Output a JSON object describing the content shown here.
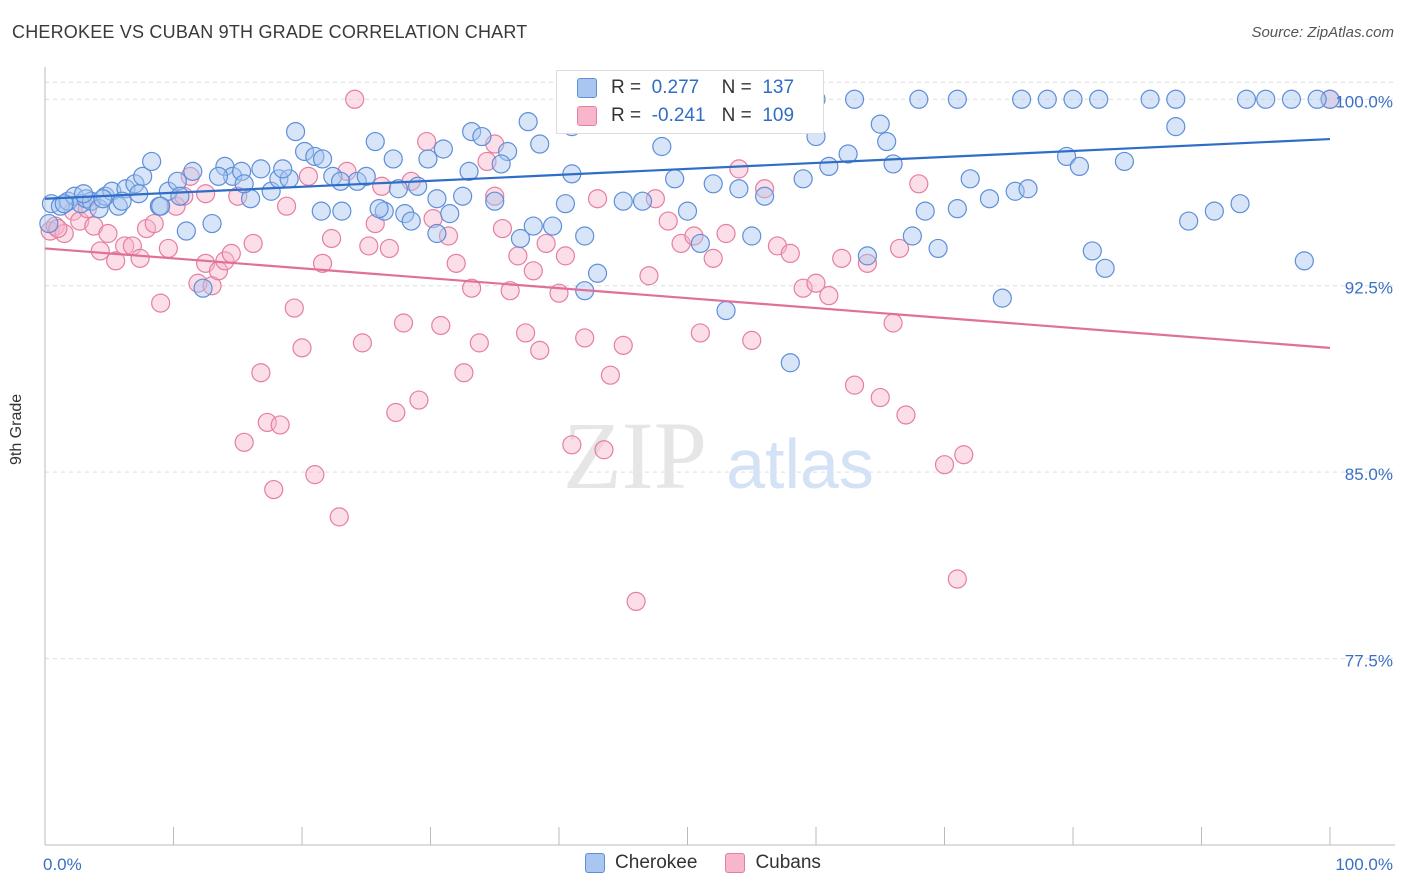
{
  "title": "CHEROKEE VS CUBAN 9TH GRADE CORRELATION CHART",
  "source": "Source: ZipAtlas.com",
  "watermark": {
    "zip": "ZIP",
    "atlas": "atlas"
  },
  "legend": {
    "rows": [
      {
        "r_label": "R =",
        "r_value": "0.277",
        "n_label": "N =",
        "n_value": "137"
      },
      {
        "r_label": "R =",
        "r_value": "-0.241",
        "n_label": "N =",
        "n_value": "109"
      }
    ]
  },
  "bottom_legend": [
    "Cherokee",
    "Cubans"
  ],
  "colors": {
    "cherokee_fill": "#a8c6f0",
    "cherokee_stroke": "#5e8fd8",
    "cherokee_line": "#2f6dc7",
    "cubans_fill": "#f7b6cb",
    "cubans_stroke": "#e57fa1",
    "cubans_line": "#e0709a",
    "tick_label": "#3a6fc4",
    "grid": "#dddddd"
  },
  "chart_data": {
    "type": "scatter",
    "title": "CHEROKEE VS CUBAN 9TH GRADE CORRELATION CHART",
    "xlabel": "",
    "ylabel": "9th Grade",
    "xlim": [
      0,
      100
    ],
    "ylim": [
      70.0,
      101.5
    ],
    "x_tick_labels": [
      {
        "value": 0,
        "label": "0.0%"
      },
      {
        "value": 100,
        "label": "100.0%"
      }
    ],
    "y_tick_labels": [
      {
        "value": 100,
        "label": "100.0%"
      },
      {
        "value": 92.5,
        "label": "92.5%"
      },
      {
        "value": 85,
        "label": "85.0%"
      },
      {
        "value": 77.5,
        "label": "77.5%"
      }
    ],
    "grid": true,
    "legend_position": "top-center",
    "series": [
      {
        "name": "Cherokee",
        "r": 0.277,
        "n": 137,
        "trend": {
          "x": [
            0,
            100
          ],
          "y": [
            96.0,
            98.4
          ]
        },
        "points": [
          [
            0.5,
            95.8
          ],
          [
            1.2,
            95.7
          ],
          [
            1.8,
            95.9
          ],
          [
            2.3,
            96.1
          ],
          [
            2.8,
            95.8
          ],
          [
            3.2,
            96.0
          ],
          [
            3.6,
            95.9
          ],
          [
            4.2,
            95.6
          ],
          [
            4.7,
            96.1
          ],
          [
            5.2,
            96.3
          ],
          [
            5.7,
            95.7
          ],
          [
            6.3,
            96.4
          ],
          [
            7.0,
            96.6
          ],
          [
            7.6,
            96.9
          ],
          [
            8.3,
            97.5
          ],
          [
            8.9,
            95.7
          ],
          [
            9.6,
            96.3
          ],
          [
            10.3,
            96.7
          ],
          [
            11.0,
            94.7
          ],
          [
            11.5,
            97.1
          ],
          [
            12.3,
            92.4
          ],
          [
            13.0,
            95.0
          ],
          [
            14.0,
            97.3
          ],
          [
            14.6,
            96.9
          ],
          [
            15.3,
            97.1
          ],
          [
            16.0,
            96.0
          ],
          [
            16.8,
            97.2
          ],
          [
            17.6,
            96.3
          ],
          [
            18.2,
            96.8
          ],
          [
            19.0,
            96.8
          ],
          [
            19.5,
            98.7
          ],
          [
            20.2,
            97.9
          ],
          [
            21.0,
            97.7
          ],
          [
            21.6,
            97.6
          ],
          [
            22.4,
            96.9
          ],
          [
            23.1,
            95.5
          ],
          [
            24.3,
            96.7
          ],
          [
            25.0,
            96.9
          ],
          [
            25.7,
            98.3
          ],
          [
            26.4,
            95.5
          ],
          [
            27.1,
            97.6
          ],
          [
            28.0,
            95.4
          ],
          [
            28.5,
            95.1
          ],
          [
            29.0,
            96.5
          ],
          [
            29.8,
            97.6
          ],
          [
            30.5,
            94.6
          ],
          [
            31.0,
            98.0
          ],
          [
            31.5,
            95.4
          ],
          [
            32.5,
            96.1
          ],
          [
            33.2,
            98.7
          ],
          [
            34.0,
            98.5
          ],
          [
            35.0,
            95.9
          ],
          [
            36.0,
            97.9
          ],
          [
            37.0,
            94.4
          ],
          [
            37.6,
            99.1
          ],
          [
            38.0,
            94.9
          ],
          [
            39.5,
            94.9
          ],
          [
            40.5,
            95.8
          ],
          [
            41.0,
            97.0
          ],
          [
            42.0,
            94.5
          ],
          [
            43.0,
            93.0
          ],
          [
            43.5,
            100.0
          ],
          [
            45.0,
            95.9
          ],
          [
            46.5,
            95.9
          ],
          [
            48.0,
            98.1
          ],
          [
            49.0,
            96.8
          ],
          [
            50.0,
            95.5
          ],
          [
            51.0,
            94.2
          ],
          [
            52.0,
            96.6
          ],
          [
            53.0,
            91.5
          ],
          [
            54.0,
            96.4
          ],
          [
            55.0,
            94.5
          ],
          [
            56.0,
            96.1
          ],
          [
            57.0,
            100.0
          ],
          [
            58.0,
            89.4
          ],
          [
            59.0,
            96.8
          ],
          [
            60.0,
            98.5
          ],
          [
            61.0,
            97.3
          ],
          [
            62.5,
            97.8
          ],
          [
            64.0,
            93.7
          ],
          [
            65.5,
            98.3
          ],
          [
            66.0,
            97.4
          ],
          [
            67.5,
            94.5
          ],
          [
            68.5,
            95.5
          ],
          [
            69.5,
            94.0
          ],
          [
            71.0,
            95.6
          ],
          [
            72.0,
            96.8
          ],
          [
            73.5,
            96.0
          ],
          [
            74.5,
            92.0
          ],
          [
            75.5,
            96.3
          ],
          [
            76.5,
            96.4
          ],
          [
            78.0,
            100.0
          ],
          [
            79.5,
            97.7
          ],
          [
            80.5,
            97.3
          ],
          [
            81.5,
            93.9
          ],
          [
            82.5,
            93.2
          ],
          [
            84.0,
            97.5
          ],
          [
            86.0,
            100.0
          ],
          [
            88.0,
            98.9
          ],
          [
            89.0,
            95.1
          ],
          [
            91.0,
            95.5
          ],
          [
            93.0,
            95.8
          ],
          [
            95.0,
            100.0
          ],
          [
            97.0,
            100.0
          ],
          [
            98.0,
            93.5
          ],
          [
            100.0,
            100.0
          ],
          [
            99.0,
            100.0
          ],
          [
            93.5,
            100.0
          ],
          [
            88.0,
            100.0
          ],
          [
            82.0,
            100.0
          ],
          [
            80.0,
            100.0
          ],
          [
            76.0,
            100.0
          ],
          [
            71.0,
            100.0
          ],
          [
            68.0,
            100.0
          ],
          [
            63.0,
            100.0
          ],
          [
            60.0,
            100.0
          ],
          [
            55.0,
            100.0
          ],
          [
            52.0,
            100.0
          ],
          [
            49.0,
            100.0
          ],
          [
            47.0,
            100.0
          ],
          [
            45.5,
            100.0
          ],
          [
            41.0,
            98.9
          ],
          [
            38.5,
            98.2
          ],
          [
            35.5,
            97.4
          ],
          [
            33.0,
            97.1
          ],
          [
            30.5,
            96.0
          ],
          [
            27.5,
            96.4
          ],
          [
            26.0,
            95.6
          ],
          [
            23.0,
            96.7
          ],
          [
            21.5,
            95.5
          ],
          [
            18.5,
            97.2
          ],
          [
            15.5,
            96.6
          ],
          [
            13.5,
            96.9
          ],
          [
            10.5,
            96.1
          ],
          [
            9.0,
            95.7
          ],
          [
            7.3,
            96.2
          ],
          [
            6.0,
            95.9
          ],
          [
            4.5,
            96.0
          ],
          [
            3.0,
            96.2
          ],
          [
            1.5,
            95.8
          ],
          [
            0.3,
            95.0
          ],
          [
            42.0,
            92.3
          ],
          [
            65.0,
            99.0
          ]
        ]
      },
      {
        "name": "Cubans",
        "r": -0.241,
        "n": 109,
        "trend": {
          "x": [
            0,
            100
          ],
          "y": [
            94.0,
            90.0
          ]
        },
        "points": [
          [
            0.4,
            94.7
          ],
          [
            0.8,
            94.9
          ],
          [
            1.5,
            94.6
          ],
          [
            2.2,
            95.5
          ],
          [
            2.7,
            95.1
          ],
          [
            3.3,
            95.6
          ],
          [
            3.8,
            94.9
          ],
          [
            4.3,
            93.9
          ],
          [
            4.9,
            94.6
          ],
          [
            5.5,
            93.5
          ],
          [
            6.2,
            94.1
          ],
          [
            6.8,
            94.1
          ],
          [
            7.4,
            93.6
          ],
          [
            7.9,
            94.8
          ],
          [
            8.5,
            95.0
          ],
          [
            9.0,
            91.8
          ],
          [
            9.6,
            94.0
          ],
          [
            10.2,
            95.7
          ],
          [
            10.8,
            96.1
          ],
          [
            11.3,
            96.9
          ],
          [
            11.9,
            92.6
          ],
          [
            12.5,
            93.4
          ],
          [
            13.0,
            92.5
          ],
          [
            13.5,
            93.1
          ],
          [
            14.0,
            93.5
          ],
          [
            14.5,
            93.8
          ],
          [
            15.0,
            96.1
          ],
          [
            15.5,
            86.2
          ],
          [
            16.2,
            94.2
          ],
          [
            16.8,
            89.0
          ],
          [
            17.3,
            87.0
          ],
          [
            17.8,
            84.3
          ],
          [
            18.3,
            86.9
          ],
          [
            18.8,
            95.7
          ],
          [
            19.4,
            91.6
          ],
          [
            20.0,
            90.0
          ],
          [
            20.5,
            96.9
          ],
          [
            21.0,
            84.9
          ],
          [
            21.6,
            93.4
          ],
          [
            22.3,
            94.4
          ],
          [
            22.9,
            83.2
          ],
          [
            23.5,
            97.1
          ],
          [
            24.1,
            100.0
          ],
          [
            24.7,
            90.2
          ],
          [
            25.2,
            94.1
          ],
          [
            25.7,
            95.0
          ],
          [
            26.2,
            96.5
          ],
          [
            26.8,
            94.0
          ],
          [
            27.3,
            87.4
          ],
          [
            27.9,
            91.0
          ],
          [
            28.5,
            96.7
          ],
          [
            29.1,
            87.9
          ],
          [
            29.7,
            98.3
          ],
          [
            30.2,
            95.2
          ],
          [
            30.8,
            90.9
          ],
          [
            31.4,
            94.5
          ],
          [
            32.0,
            93.4
          ],
          [
            32.6,
            89.0
          ],
          [
            33.2,
            92.4
          ],
          [
            33.8,
            90.2
          ],
          [
            34.4,
            97.5
          ],
          [
            35.0,
            96.1
          ],
          [
            35.6,
            94.8
          ],
          [
            36.2,
            92.3
          ],
          [
            36.8,
            93.7
          ],
          [
            37.4,
            90.6
          ],
          [
            38.0,
            93.1
          ],
          [
            39.0,
            94.2
          ],
          [
            40.0,
            92.2
          ],
          [
            40.5,
            93.7
          ],
          [
            41.0,
            86.1
          ],
          [
            42.0,
            90.4
          ],
          [
            43.0,
            96.0
          ],
          [
            44.0,
            88.9
          ],
          [
            45.0,
            90.1
          ],
          [
            46.0,
            79.8
          ],
          [
            47.0,
            92.9
          ],
          [
            47.5,
            96.0
          ],
          [
            48.5,
            95.1
          ],
          [
            49.5,
            94.2
          ],
          [
            50.5,
            94.5
          ],
          [
            51.0,
            90.6
          ],
          [
            52.0,
            93.6
          ],
          [
            53.0,
            94.6
          ],
          [
            54.0,
            97.2
          ],
          [
            55.0,
            90.3
          ],
          [
            56.0,
            96.4
          ],
          [
            57.0,
            94.1
          ],
          [
            58.0,
            93.8
          ],
          [
            59.0,
            92.4
          ],
          [
            60.0,
            92.6
          ],
          [
            61.0,
            92.1
          ],
          [
            62.0,
            93.6
          ],
          [
            63.0,
            88.5
          ],
          [
            64.0,
            93.4
          ],
          [
            65.0,
            88.0
          ],
          [
            66.0,
            91.0
          ],
          [
            67.0,
            87.3
          ],
          [
            68.0,
            96.6
          ],
          [
            70.0,
            85.3
          ],
          [
            71.5,
            85.7
          ],
          [
            71.0,
            80.7
          ],
          [
            66.5,
            94.0
          ],
          [
            43.5,
            85.9
          ],
          [
            38.5,
            89.9
          ],
          [
            35.0,
            98.2
          ],
          [
            12.5,
            96.2
          ],
          [
            1.0,
            94.8
          ],
          [
            100.0,
            100.0
          ]
        ]
      }
    ]
  }
}
